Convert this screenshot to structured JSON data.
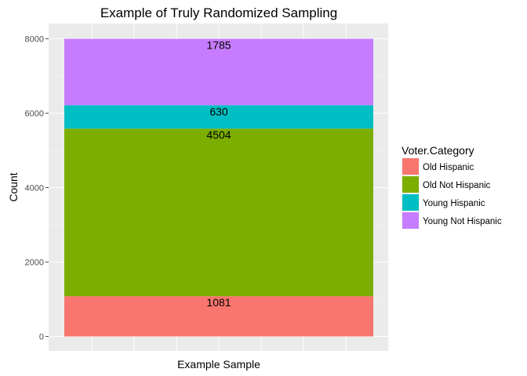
{
  "chart_data": {
    "type": "bar",
    "stacked": true,
    "title": "Example of Truly Randomized Sampling",
    "xlabel": "Example Sample",
    "ylabel": "Count",
    "ylim": [
      0,
      8000
    ],
    "yticks": [
      0,
      2000,
      4000,
      6000,
      8000
    ],
    "grid": true,
    "legend_position": "right",
    "legend_title": "Voter.Category",
    "categories": [
      ""
    ],
    "series": [
      {
        "name": "Old Hispanic",
        "values": [
          1081
        ],
        "color": "#F8766D"
      },
      {
        "name": "Old Not Hispanic",
        "values": [
          4504
        ],
        "color": "#7CAE00"
      },
      {
        "name": "Young Hispanic",
        "values": [
          630
        ],
        "color": "#00BFC4"
      },
      {
        "name": "Young Not Hispanic",
        "values": [
          1785
        ],
        "color": "#C77CFF"
      }
    ]
  }
}
